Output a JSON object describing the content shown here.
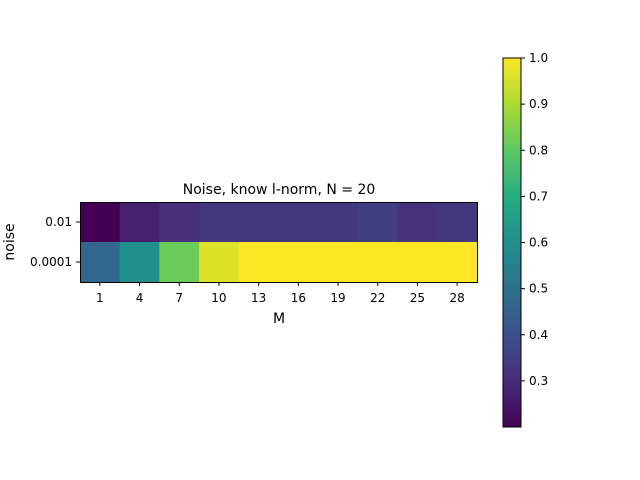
{
  "chart_data": {
    "type": "heatmap",
    "title": "Noise, know l-norm, N = 20",
    "xlabel": "M",
    "ylabel": "noise",
    "x": [
      "1",
      "4",
      "7",
      "10",
      "13",
      "16",
      "19",
      "22",
      "25",
      "28"
    ],
    "y": [
      "0.01",
      "0.0001"
    ],
    "values": [
      [
        0.2,
        0.27,
        0.31,
        0.33,
        0.33,
        0.33,
        0.33,
        0.35,
        0.32,
        0.33
      ],
      [
        0.47,
        0.6,
        0.82,
        0.96,
        1.0,
        1.0,
        1.0,
        1.0,
        1.0,
        1.0
      ]
    ],
    "colormap": "viridis",
    "colorbar": {
      "min": 0.2,
      "max": 1.0,
      "ticks": [
        "0.3",
        "0.4",
        "0.5",
        "0.6",
        "0.7",
        "0.8",
        "0.9",
        "1.0"
      ]
    }
  }
}
